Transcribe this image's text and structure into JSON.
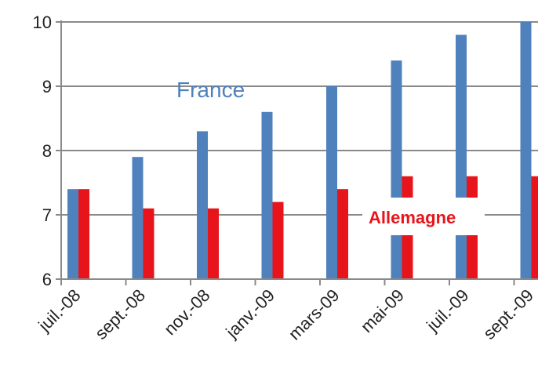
{
  "chart_data": {
    "type": "bar",
    "categories": [
      "juil.-08",
      "sept.-08",
      "nov.-08",
      "janv.-09",
      "mars-09",
      "mai-09",
      "juil.-09",
      "sept.-09"
    ],
    "series": [
      {
        "name": "France",
        "color": "#4F81BD",
        "values": [
          7.4,
          7.9,
          8.3,
          8.6,
          9.0,
          9.4,
          9.8,
          10.0
        ]
      },
      {
        "name": "Allemagne",
        "color": "#E8141B",
        "values": [
          7.4,
          7.1,
          7.1,
          7.2,
          7.4,
          7.6,
          7.6,
          7.6
        ]
      }
    ],
    "yticks": [
      "6",
      "7",
      "8",
      "9",
      "10"
    ],
    "ylim": [
      6,
      10
    ],
    "grid": true,
    "legend": "inline labels"
  }
}
